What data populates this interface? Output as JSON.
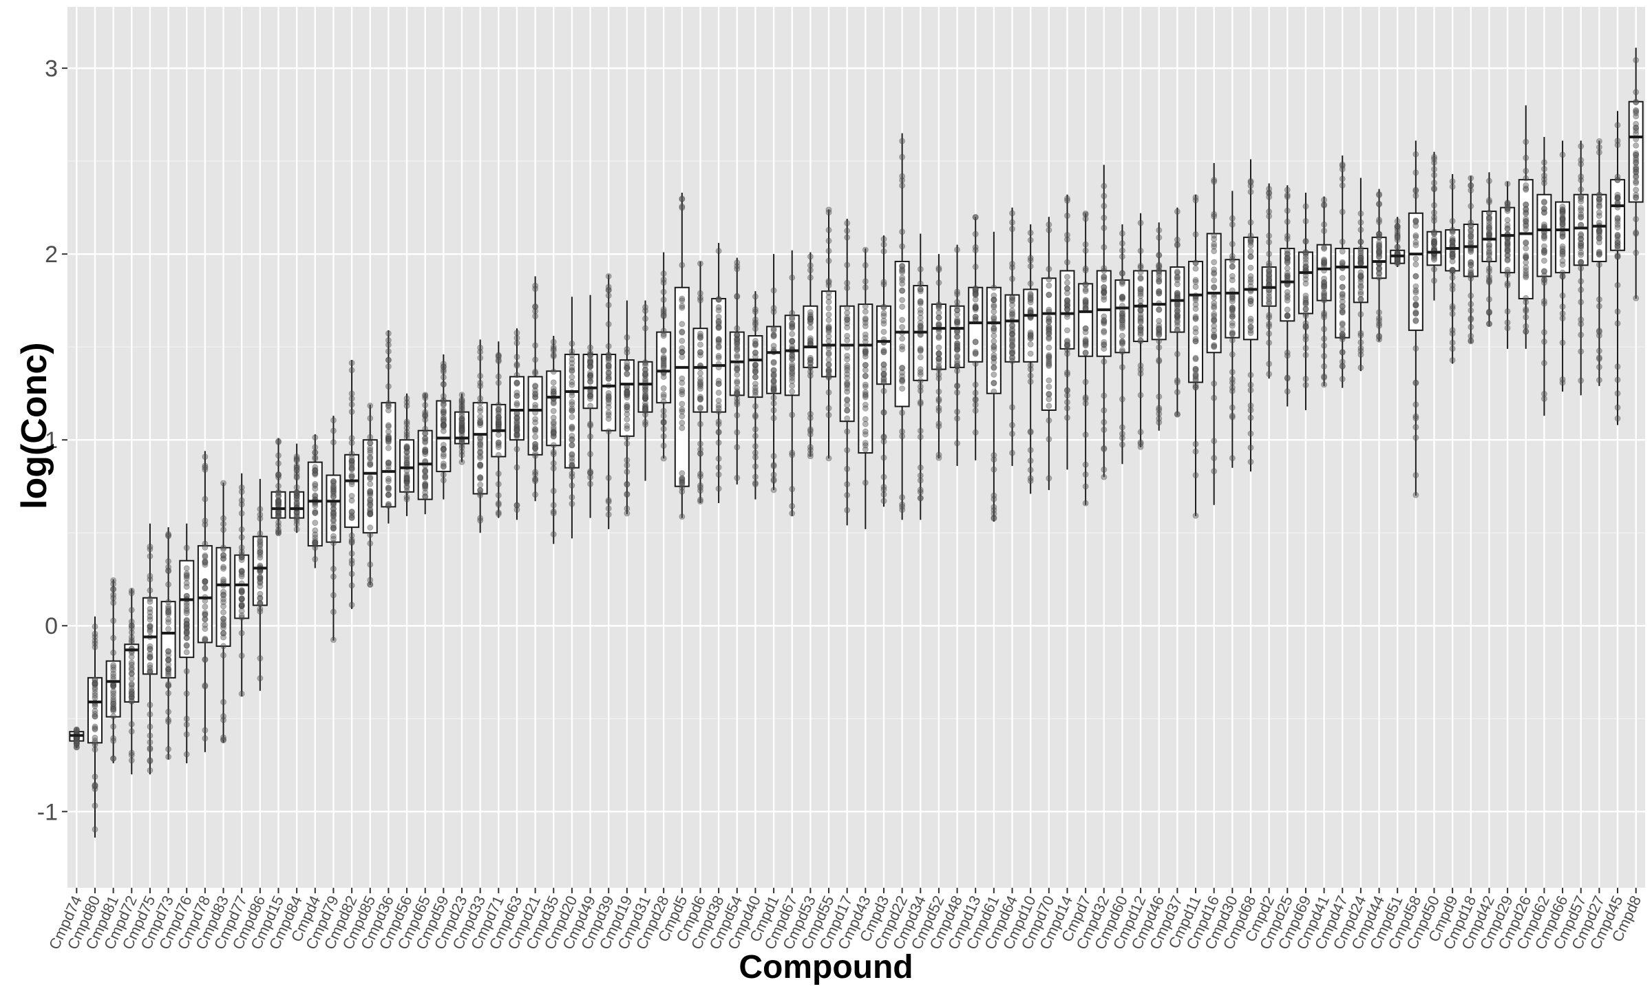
{
  "chart_data": {
    "type": "box",
    "title": "",
    "xlabel": "Compound",
    "ylabel": "log(Conc)",
    "ylim": [
      -1.41,
      3.33
    ],
    "yticks": [
      -1,
      0,
      1,
      2,
      3
    ],
    "ytick_labels": [
      "-1",
      "0",
      "1",
      "2",
      "3"
    ],
    "grid": true,
    "legend": null,
    "points_overlay": "jittered semi-transparent grey points per compound",
    "categories": [
      "Cmpd74",
      "Cmpd80",
      "Cmpd81",
      "Cmpd72",
      "Cmpd75",
      "Cmpd73",
      "Cmpd76",
      "Cmpd78",
      "Cmpd83",
      "Cmpd77",
      "Cmpd86",
      "Cmpd15",
      "Cmpd84",
      "Cmpd4",
      "Cmpd79",
      "Cmpd82",
      "Cmpd85",
      "Cmpd36",
      "Cmpd56",
      "Cmpd65",
      "Cmpd59",
      "Cmpd23",
      "Cmpd33",
      "Cmpd71",
      "Cmpd63",
      "Cmpd21",
      "Cmpd35",
      "Cmpd20",
      "Cmpd49",
      "Cmpd39",
      "Cmpd19",
      "Cmpd31",
      "Cmpd28",
      "Cmpd5",
      "Cmpd6",
      "Cmpd38",
      "Cmpd54",
      "Cmpd40",
      "Cmpd1",
      "Cmpd67",
      "Cmpd53",
      "Cmpd55",
      "Cmpd17",
      "Cmpd43",
      "Cmpd3",
      "Cmpd22",
      "Cmpd34",
      "Cmpd52",
      "Cmpd48",
      "Cmpd13",
      "Cmpd61",
      "Cmpd64",
      "Cmpd10",
      "Cmpd70",
      "Cmpd14",
      "Cmpd7",
      "Cmpd32",
      "Cmpd60",
      "Cmpd12",
      "Cmpd46",
      "Cmpd37",
      "Cmpd11",
      "Cmpd16",
      "Cmpd30",
      "Cmpd68",
      "Cmpd2",
      "Cmpd25",
      "Cmpd69",
      "Cmpd41",
      "Cmpd47",
      "Cmpd24",
      "Cmpd44",
      "Cmpd51",
      "Cmpd58",
      "Cmpd50",
      "Cmpd9",
      "Cmpd18",
      "Cmpd42",
      "Cmpd29",
      "Cmpd26",
      "Cmpd62",
      "Cmpd66",
      "Cmpd57",
      "Cmpd27",
      "Cmpd45",
      "Cmpd8"
    ],
    "series": [
      {
        "name": "q1",
        "values": [
          -0.62,
          -0.63,
          -0.49,
          -0.41,
          -0.26,
          -0.28,
          -0.17,
          -0.09,
          -0.11,
          0.04,
          0.11,
          0.58,
          0.58,
          0.43,
          0.45,
          0.53,
          0.5,
          0.64,
          0.72,
          0.68,
          0.83,
          0.98,
          0.71,
          0.91,
          1.0,
          0.92,
          0.97,
          0.85,
          1.17,
          1.05,
          1.02,
          1.15,
          1.2,
          0.75,
          1.15,
          1.15,
          1.24,
          1.23,
          1.25,
          1.24,
          1.39,
          1.34,
          1.1,
          0.93,
          1.3,
          1.18,
          1.32,
          1.38,
          1.39,
          1.42,
          1.25,
          1.42,
          1.42,
          1.16,
          1.49,
          1.45,
          1.45,
          1.47,
          1.53,
          1.54,
          1.58,
          1.31,
          1.47,
          1.55,
          1.54,
          1.72,
          1.64,
          1.68,
          1.75,
          1.55,
          1.74,
          1.87,
          1.95,
          1.59,
          1.94,
          1.91,
          1.88,
          1.96,
          1.9,
          1.76,
          1.88,
          1.9,
          1.94,
          1.96,
          2.02,
          2.28
        ]
      },
      {
        "name": "median",
        "values": [
          -0.59,
          -0.41,
          -0.3,
          -0.13,
          -0.06,
          -0.04,
          0.14,
          0.15,
          0.22,
          0.22,
          0.31,
          0.63,
          0.63,
          0.67,
          0.67,
          0.78,
          0.82,
          0.83,
          0.85,
          0.87,
          1.01,
          1.01,
          1.03,
          1.05,
          1.16,
          1.16,
          1.23,
          1.26,
          1.28,
          1.29,
          1.3,
          1.3,
          1.37,
          1.39,
          1.39,
          1.4,
          1.42,
          1.43,
          1.47,
          1.48,
          1.5,
          1.51,
          1.51,
          1.51,
          1.53,
          1.58,
          1.58,
          1.6,
          1.6,
          1.63,
          1.63,
          1.64,
          1.67,
          1.68,
          1.68,
          1.69,
          1.7,
          1.71,
          1.72,
          1.73,
          1.75,
          1.78,
          1.79,
          1.79,
          1.81,
          1.82,
          1.85,
          1.9,
          1.92,
          1.93,
          1.93,
          1.96,
          1.99,
          2.0,
          2.01,
          2.03,
          2.04,
          2.08,
          2.1,
          2.11,
          2.13,
          2.13,
          2.14,
          2.15,
          2.26,
          2.63
        ]
      },
      {
        "name": "q3",
        "values": [
          -0.57,
          -0.28,
          -0.19,
          -0.1,
          0.15,
          0.13,
          0.35,
          0.43,
          0.42,
          0.38,
          0.48,
          0.72,
          0.72,
          0.88,
          0.81,
          0.92,
          1.0,
          1.2,
          1.0,
          1.05,
          1.21,
          1.15,
          1.2,
          1.19,
          1.34,
          1.34,
          1.37,
          1.46,
          1.46,
          1.46,
          1.43,
          1.42,
          1.58,
          1.82,
          1.6,
          1.76,
          1.58,
          1.56,
          1.61,
          1.67,
          1.72,
          1.8,
          1.72,
          1.73,
          1.72,
          1.96,
          1.83,
          1.73,
          1.72,
          1.82,
          1.82,
          1.78,
          1.81,
          1.87,
          1.91,
          1.84,
          1.91,
          1.86,
          1.91,
          1.91,
          1.93,
          1.96,
          2.11,
          1.97,
          2.09,
          1.93,
          2.03,
          2.01,
          2.05,
          2.03,
          2.03,
          2.09,
          2.02,
          2.22,
          2.12,
          2.13,
          2.16,
          2.23,
          2.25,
          2.4,
          2.32,
          2.28,
          2.32,
          2.32,
          2.4,
          2.82
        ]
      },
      {
        "name": "whisker_low",
        "values": [
          -0.66,
          -1.14,
          -0.74,
          -0.8,
          -0.8,
          -0.72,
          -0.74,
          -0.68,
          -0.63,
          -0.38,
          -0.35,
          0.49,
          0.5,
          0.31,
          -0.08,
          0.09,
          0.22,
          0.55,
          0.59,
          0.6,
          0.68,
          0.88,
          0.5,
          0.58,
          0.57,
          0.67,
          0.44,
          0.47,
          0.58,
          0.52,
          0.6,
          0.78,
          0.9,
          0.58,
          0.66,
          0.66,
          0.76,
          0.68,
          0.73,
          0.59,
          0.91,
          0.9,
          0.54,
          0.52,
          0.64,
          0.57,
          0.57,
          0.9,
          0.86,
          0.89,
          0.56,
          0.86,
          0.71,
          0.73,
          0.84,
          0.65,
          0.8,
          0.87,
          0.96,
          1.05,
          1.13,
          0.59,
          0.65,
          0.85,
          0.83,
          1.33,
          1.18,
          1.16,
          1.29,
          1.28,
          1.37,
          1.53,
          1.93,
          0.7,
          1.75,
          1.41,
          1.52,
          1.61,
          1.49,
          1.49,
          1.13,
          1.26,
          1.24,
          1.29,
          1.08,
          1.76
        ]
      },
      {
        "name": "whisker_high",
        "values": [
          -0.55,
          0.05,
          0.25,
          0.2,
          0.55,
          0.53,
          0.55,
          0.94,
          0.77,
          0.82,
          0.79,
          1.01,
          0.98,
          1.03,
          1.13,
          1.43,
          1.19,
          1.59,
          1.25,
          1.25,
          1.46,
          1.25,
          1.54,
          1.53,
          1.6,
          1.88,
          1.56,
          1.77,
          1.78,
          1.89,
          1.75,
          1.75,
          2.01,
          2.33,
          1.96,
          2.06,
          1.98,
          1.8,
          2.0,
          2.02,
          2.01,
          2.24,
          2.19,
          2.03,
          2.1,
          2.65,
          2.11,
          2.0,
          2.05,
          2.2,
          2.12,
          2.25,
          2.16,
          2.2,
          2.32,
          2.22,
          2.48,
          2.16,
          2.22,
          2.17,
          2.25,
          2.32,
          2.49,
          2.34,
          2.51,
          2.38,
          2.37,
          2.33,
          2.31,
          2.53,
          2.41,
          2.35,
          2.2,
          2.61,
          2.55,
          2.43,
          2.42,
          2.44,
          2.39,
          2.8,
          2.63,
          2.61,
          2.61,
          2.61,
          2.77,
          3.11
        ]
      },
      {
        "name": "outliers_count_approx",
        "values": [
          1,
          1,
          6,
          7,
          1,
          0,
          0,
          0,
          0,
          1,
          0,
          0,
          0,
          0,
          3,
          2,
          0,
          0,
          0,
          0,
          1,
          0,
          0,
          0,
          2,
          0,
          0,
          0,
          3,
          0,
          0,
          2,
          0,
          0,
          0,
          0,
          0,
          3,
          3,
          0,
          0,
          0,
          0,
          0,
          3,
          0,
          1,
          0,
          1,
          1,
          0,
          4,
          1,
          0,
          1,
          1,
          0,
          0,
          1,
          1,
          0,
          0,
          0,
          4,
          0,
          1,
          1,
          0,
          0,
          0,
          1,
          1,
          0,
          0,
          2,
          2,
          0,
          2,
          4,
          0,
          2,
          2,
          2,
          3,
          3,
          0
        ]
      }
    ]
  },
  "axes": {
    "x_title": "Compound",
    "y_title": "log(Conc)"
  },
  "colors": {
    "panel_bg": "#e5e5e5",
    "grid_major": "#ffffff",
    "grid_minor": "#f2f2f2",
    "box_fill": "#ffffff",
    "box_stroke": "#1a1a1a",
    "point_fill": "#595959",
    "outlier": "#000000",
    "tick_text": "#4d4d4d"
  }
}
